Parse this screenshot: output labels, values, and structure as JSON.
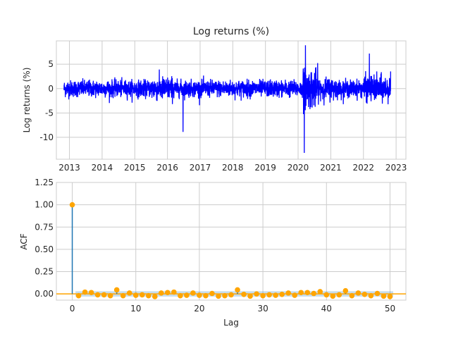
{
  "chart_data": [
    {
      "type": "line",
      "title": "Log returns (%)",
      "xlabel": "",
      "ylabel": "Log returns (%)",
      "x_range": [
        "2012-11-01",
        "2022-11-01"
      ],
      "xlim": [
        2012.6,
        2023.3
      ],
      "ylim": [
        -14.5,
        9.8
      ],
      "xticks": [
        "2013",
        "2014",
        "2015",
        "2016",
        "2017",
        "2018",
        "2019",
        "2020",
        "2021",
        "2022",
        "2023"
      ],
      "yticks": [
        5,
        0,
        -5,
        -10
      ],
      "grid": true,
      "color": "#0000ff",
      "events": [
        {
          "date": "2016-06-24",
          "value": -8.9
        },
        {
          "date": "2020-03-10",
          "value": -13.2
        },
        {
          "date": "2020-03-24",
          "value": 8.9
        },
        {
          "date": "2022-03-09",
          "value": 7.2
        }
      ]
    },
    {
      "type": "scatter",
      "title": "",
      "xlabel": "Lag",
      "ylabel": "ACF",
      "xlim": [
        -2.5,
        52.5
      ],
      "ylim": [
        -0.07,
        1.25
      ],
      "xticks": [
        0,
        10,
        20,
        30,
        40,
        50
      ],
      "yticks": [
        1.25,
        1.0,
        0.75,
        0.5,
        0.25,
        0.0
      ],
      "grid": true,
      "marker_color": "#ffa500",
      "stem_color": "#1f77b4",
      "confidence_band": 0.03,
      "lags": [
        0,
        1,
        2,
        3,
        4,
        5,
        6,
        7,
        8,
        9,
        10,
        11,
        12,
        13,
        14,
        15,
        16,
        17,
        18,
        19,
        20,
        21,
        22,
        23,
        24,
        25,
        26,
        27,
        28,
        29,
        30,
        31,
        32,
        33,
        34,
        35,
        36,
        37,
        38,
        39,
        40,
        41,
        42,
        43,
        44,
        45,
        46,
        47,
        48,
        49,
        50
      ],
      "values": [
        1.0,
        -0.02,
        0.02,
        0.015,
        -0.01,
        -0.01,
        -0.02,
        0.045,
        -0.02,
        0.01,
        -0.015,
        -0.01,
        -0.02,
        -0.03,
        0.01,
        0.015,
        0.02,
        -0.02,
        -0.015,
        0.01,
        -0.015,
        -0.02,
        0.005,
        -0.025,
        -0.02,
        -0.01,
        0.045,
        -0.005,
        -0.025,
        0.0,
        -0.02,
        -0.01,
        -0.015,
        -0.005,
        0.01,
        -0.015,
        0.015,
        0.015,
        0.005,
        0.025,
        -0.01,
        -0.025,
        -0.01,
        0.035,
        -0.02,
        0.01,
        -0.005,
        -0.02,
        0.005,
        -0.025,
        -0.03
      ]
    }
  ]
}
